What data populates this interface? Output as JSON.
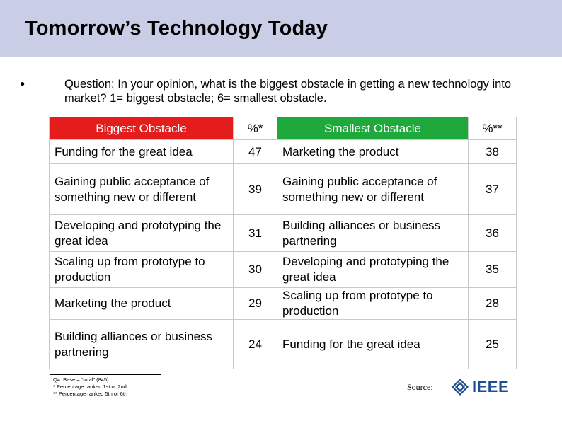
{
  "slide": {
    "title": "Tomorrow’s Technology Today",
    "bullet": "●",
    "question": "Question:  In your opinion, what is the biggest obstacle in getting a new technology into market?  1= biggest obstacle; 6= smallest obstacle."
  },
  "table": {
    "headers": {
      "biggest": "Biggest Obstacle",
      "biggest_pct": "%*",
      "smallest": "Smallest Obstacle",
      "smallest_pct": "%**"
    },
    "rows": [
      {
        "biggest": "Funding for the great idea",
        "biggest_pct": "47",
        "smallest": "Marketing the product",
        "smallest_pct": "38"
      },
      {
        "biggest": "Gaining public acceptance of something new or different",
        "biggest_pct": "39",
        "smallest": "Gaining public acceptance of something new or different",
        "smallest_pct": "37"
      },
      {
        "biggest": "Developing and prototyping the great idea",
        "biggest_pct": "31",
        "smallest": "Building alliances or business partnering",
        "smallest_pct": "36"
      },
      {
        "biggest": "Scaling up from prototype to production",
        "biggest_pct": "30",
        "smallest": "Developing and prototyping the great idea",
        "smallest_pct": "35"
      },
      {
        "biggest": "Marketing the product",
        "biggest_pct": "29",
        "smallest": "Scaling up from prototype to production",
        "smallest_pct": "28"
      },
      {
        "biggest": "Building alliances or business partnering",
        "biggest_pct": "24",
        "smallest": "Funding for the great idea",
        "smallest_pct": "25"
      }
    ]
  },
  "footnote": {
    "line1": "Q4:  Base = “total” (845)",
    "line2": "* Percentage ranked 1st or 2nd",
    "line3": "** Percentage ranked 5th or 6th"
  },
  "source": {
    "label": "Source:",
    "logo_text": "IEEE",
    "logo_icon": "ieee-diamond-icon",
    "logo_color": "#1d4f91"
  },
  "colors": {
    "title_band": "#c9cde6",
    "biggest_header": "#e51c1c",
    "smallest_header": "#1fa83c"
  }
}
